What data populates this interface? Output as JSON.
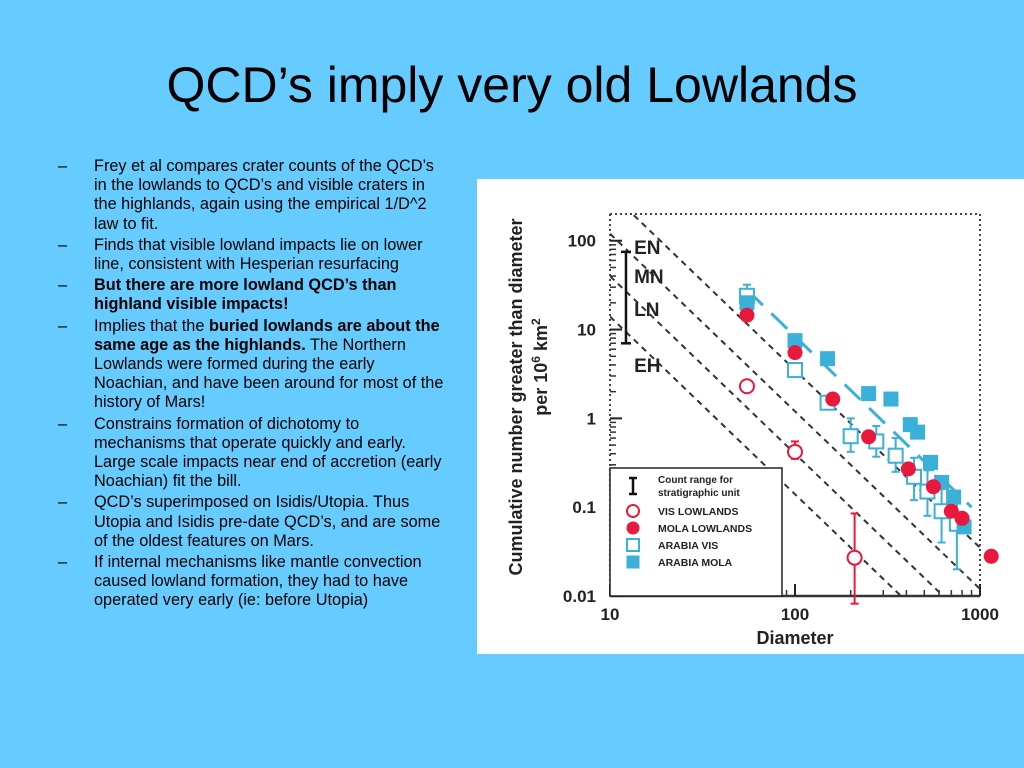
{
  "title": "QCD’s imply very old Lowlands",
  "bullets": [
    {
      "dash": "–",
      "parts": [
        {
          "text": "Frey et al compares crater counts of the QCD’s in the lowlands to QCD’s and visible craters in the highlands, again using the empirical 1/D^2 law to fit.",
          "bold": false
        }
      ]
    },
    {
      "dash": "–",
      "parts": [
        {
          "text": "Finds that visible lowland impacts lie on lower line, consistent with Hesperian resurfacing",
          "bold": false
        }
      ]
    },
    {
      "dash": "–",
      "parts": [
        {
          "text": "But there are more lowland QCD’s than highland visible impacts!",
          "bold": true
        }
      ]
    },
    {
      "dash": "–",
      "parts": [
        {
          "text": "Implies that the ",
          "bold": false
        },
        {
          "text": "buried lowlands are about the same age as the highlands.",
          "bold": true
        },
        {
          "text": "  The Northern Lowlands were formed during the early Noachian, and have been around for most of the history of Mars!",
          "bold": false
        }
      ]
    },
    {
      "dash": "–",
      "parts": [
        {
          "text": "Constrains formation of dichotomy to mechanisms that operate quickly and early.  Large scale impacts near end of accretion (early Noachian) fit the bill.",
          "bold": false
        }
      ]
    },
    {
      "dash": "–",
      "parts": [
        {
          "text": "QCD’s superimposed on Isidis/Utopia. Thus Utopia and Isidis pre-date QCD’s, and are some of the oldest features on Mars.",
          "bold": false
        }
      ]
    },
    {
      "dash": "–",
      "parts": [
        {
          "text": "If internal mechanisms like mantle convection caused lowland formation, they had to have operated very early (ie: before Utopia)",
          "bold": false
        }
      ]
    }
  ],
  "chart_data": {
    "type": "scatter",
    "xlabel": "Diameter",
    "ylabel": "Cumulative number greater than diameter per 10⁶ km²",
    "ylabel_line1": "Cumulative number greater than diameter",
    "ylabel_line2_pre": "per 10",
    "ylabel_line2_sup": "6",
    "ylabel_line2_post": " km",
    "ylabel_line2_sup2": "2",
    "x_scale": "log",
    "y_scale": "log",
    "xlim": [
      10,
      1000
    ],
    "ylim": [
      0.01,
      200
    ],
    "x_ticks": [
      {
        "value": 10,
        "label": "10"
      },
      {
        "value": 100,
        "label": "100"
      },
      {
        "value": 1000,
        "label": "1000"
      }
    ],
    "y_ticks": [
      {
        "value": 100,
        "label": "100"
      },
      {
        "value": 10,
        "label": "10"
      },
      {
        "value": 1,
        "label": "1"
      },
      {
        "value": 0.1,
        "label": "0.1"
      },
      {
        "value": 0.01,
        "label": "0.01"
      }
    ],
    "reference_lines": [
      {
        "label": "EN",
        "style": "dashed",
        "color": "#333333",
        "points": [
          [
            10,
            350
          ],
          [
            1000,
            0.035
          ]
        ]
      },
      {
        "label": "MN",
        "style": "dashed",
        "color": "#333333",
        "points": [
          [
            10,
            120
          ],
          [
            1000,
            0.012
          ]
        ]
      },
      {
        "label": "LN",
        "style": "dashed",
        "color": "#333333",
        "points": [
          [
            10,
            40
          ],
          [
            1000,
            0.004
          ]
        ]
      },
      {
        "label": "EH",
        "style": "dashed",
        "color": "#333333",
        "points": [
          [
            10,
            14
          ],
          [
            1000,
            0.0014
          ]
        ]
      },
      {
        "label": "",
        "style": "longdash",
        "color": "#3bb0d8",
        "points": [
          [
            55,
            28
          ],
          [
            900,
            0.1
          ]
        ]
      }
    ],
    "count_range_bar": {
      "x": 12.2,
      "y_low": 75,
      "y_high": 7,
      "labels_x": 13.5
    },
    "line_labels": [
      {
        "label": "EN",
        "y": 85
      },
      {
        "label": "MN",
        "y": 40
      },
      {
        "label": "LN",
        "y": 17
      },
      {
        "label": "EH",
        "y": 4
      }
    ],
    "series": [
      {
        "name": "VIS LOWLANDS",
        "marker": "open-circle",
        "color": "#e8193c",
        "points": [
          {
            "x": 55,
            "y": 2.3
          },
          {
            "x": 100,
            "y": 0.42,
            "err": [
              0.35,
              0.55
            ]
          },
          {
            "x": 210,
            "y": 0.027,
            "err": [
              0.0082,
              0.085
            ]
          }
        ]
      },
      {
        "name": "MOLA LOWLANDS",
        "marker": "filled-circle",
        "color": "#e8193c",
        "points": [
          {
            "x": 55,
            "y": 14.5
          },
          {
            "x": 100,
            "y": 5.5
          },
          {
            "x": 160,
            "y": 1.65
          },
          {
            "x": 250,
            "y": 0.62
          },
          {
            "x": 410,
            "y": 0.27
          },
          {
            "x": 560,
            "y": 0.17
          },
          {
            "x": 700,
            "y": 0.09
          },
          {
            "x": 800,
            "y": 0.075
          },
          {
            "x": 1150,
            "y": 0.028
          }
        ]
      },
      {
        "name": "ARABIA VIS",
        "marker": "open-square",
        "color": "#3bb0d8",
        "points": [
          {
            "x": 55,
            "y": 24,
            "err": [
              18,
              32
            ]
          },
          {
            "x": 100,
            "y": 3.5
          },
          {
            "x": 150,
            "y": 1.5
          },
          {
            "x": 200,
            "y": 0.63,
            "err": [
              0.42,
              1.0
            ]
          },
          {
            "x": 275,
            "y": 0.55,
            "err": [
              0.37,
              0.82
            ]
          },
          {
            "x": 350,
            "y": 0.38,
            "err": [
              0.25,
              0.6
            ]
          },
          {
            "x": 440,
            "y": 0.22,
            "err": [
              0.12,
              0.36
            ]
          },
          {
            "x": 520,
            "y": 0.15,
            "err": [
              0.08,
              0.26
            ]
          },
          {
            "x": 620,
            "y": 0.09,
            "err": [
              0.04,
              0.17
            ]
          },
          {
            "x": 750,
            "y": 0.065,
            "err": [
              0.02,
              0.13
            ]
          }
        ]
      },
      {
        "name": "ARABIA MOLA",
        "marker": "filled-square",
        "color": "#3bb0d8",
        "points": [
          {
            "x": 55,
            "y": 20
          },
          {
            "x": 100,
            "y": 7.5
          },
          {
            "x": 150,
            "y": 4.7
          },
          {
            "x": 250,
            "y": 1.9
          },
          {
            "x": 330,
            "y": 1.65
          },
          {
            "x": 420,
            "y": 0.85
          },
          {
            "x": 460,
            "y": 0.7
          },
          {
            "x": 540,
            "y": 0.32
          },
          {
            "x": 620,
            "y": 0.19
          },
          {
            "x": 720,
            "y": 0.13
          },
          {
            "x": 820,
            "y": 0.06
          }
        ]
      }
    ],
    "legend": {
      "placement": "bottom-left",
      "header_line1": "Count range for",
      "header_line2": "stratigraphic unit",
      "entries": [
        "VIS LOWLANDS",
        "MOLA LOWLANDS",
        "ARABIA VIS",
        "ARABIA MOLA"
      ]
    }
  }
}
